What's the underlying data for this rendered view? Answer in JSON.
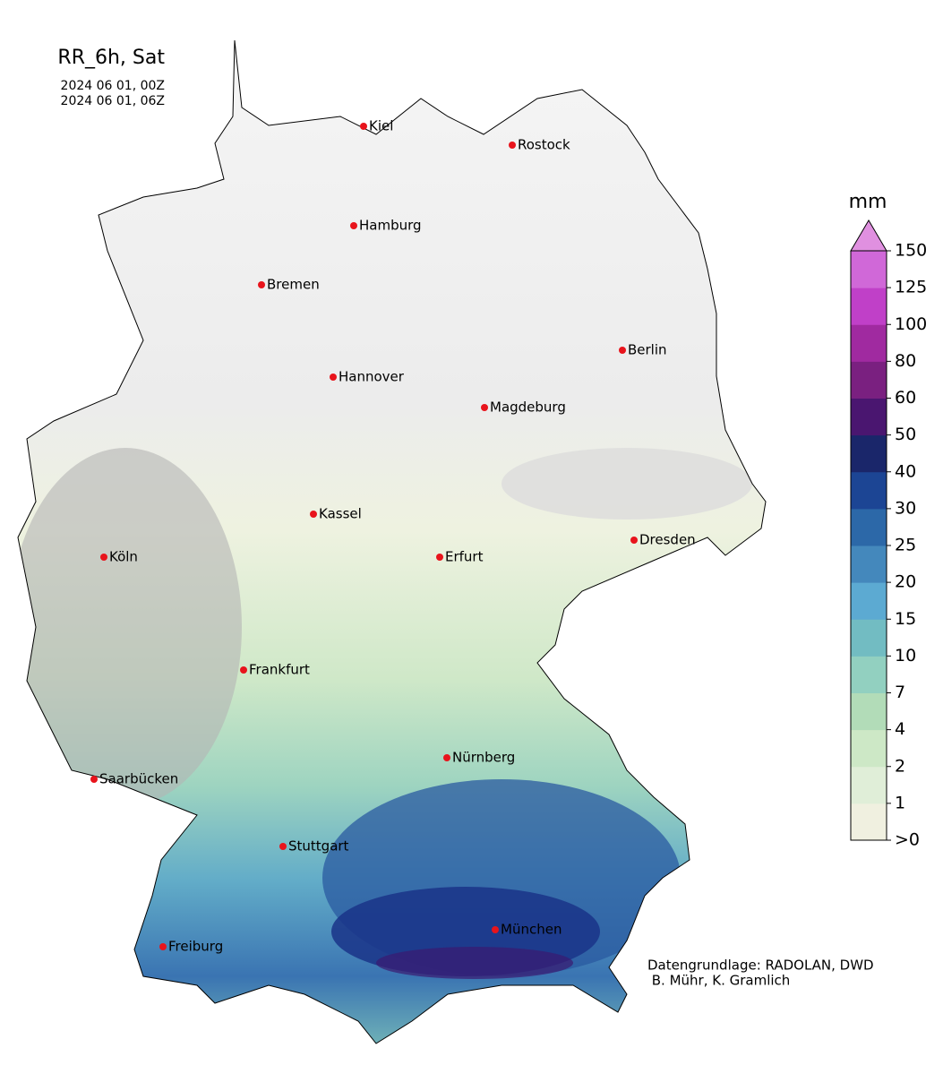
{
  "header": {
    "title": "RR_6h, Sat",
    "start": "2024 06 01, 00Z",
    "end": "2024 06 01, 06Z"
  },
  "cities": [
    "Kiel",
    "Rostock",
    "Hamburg",
    "Bremen",
    "Berlin",
    "Hannover",
    "Magdeburg",
    "Kassel",
    "Dresden",
    "Köln",
    "Erfurt",
    "Frankfurt",
    "Nürnberg",
    "Saarbücken",
    "Stuttgart",
    "München",
    "Freiburg"
  ],
  "colorbar": {
    "unit": "mm",
    "levels": [
      ">0",
      "1",
      "2",
      "4",
      "7",
      "10",
      "15",
      "20",
      "25",
      "30",
      "40",
      "50",
      "60",
      "80",
      "100",
      "125",
      "150"
    ],
    "colors": [
      "#f0f0e0",
      "#e0eed8",
      "#cde8c6",
      "#b2dcb8",
      "#92d0c0",
      "#72bcc2",
      "#5caad2",
      "#4488bc",
      "#2c68a8",
      "#1c4594",
      "#1a266a",
      "#4a1670",
      "#7a2080",
      "#a02aa0",
      "#c040c8",
      "#d068d8"
    ],
    "extend_color": "#e090e0"
  },
  "credits": [
    "Datengrundlage: RADOLAN, DWD",
    " B. Mühr, K. Gramlich"
  ]
}
